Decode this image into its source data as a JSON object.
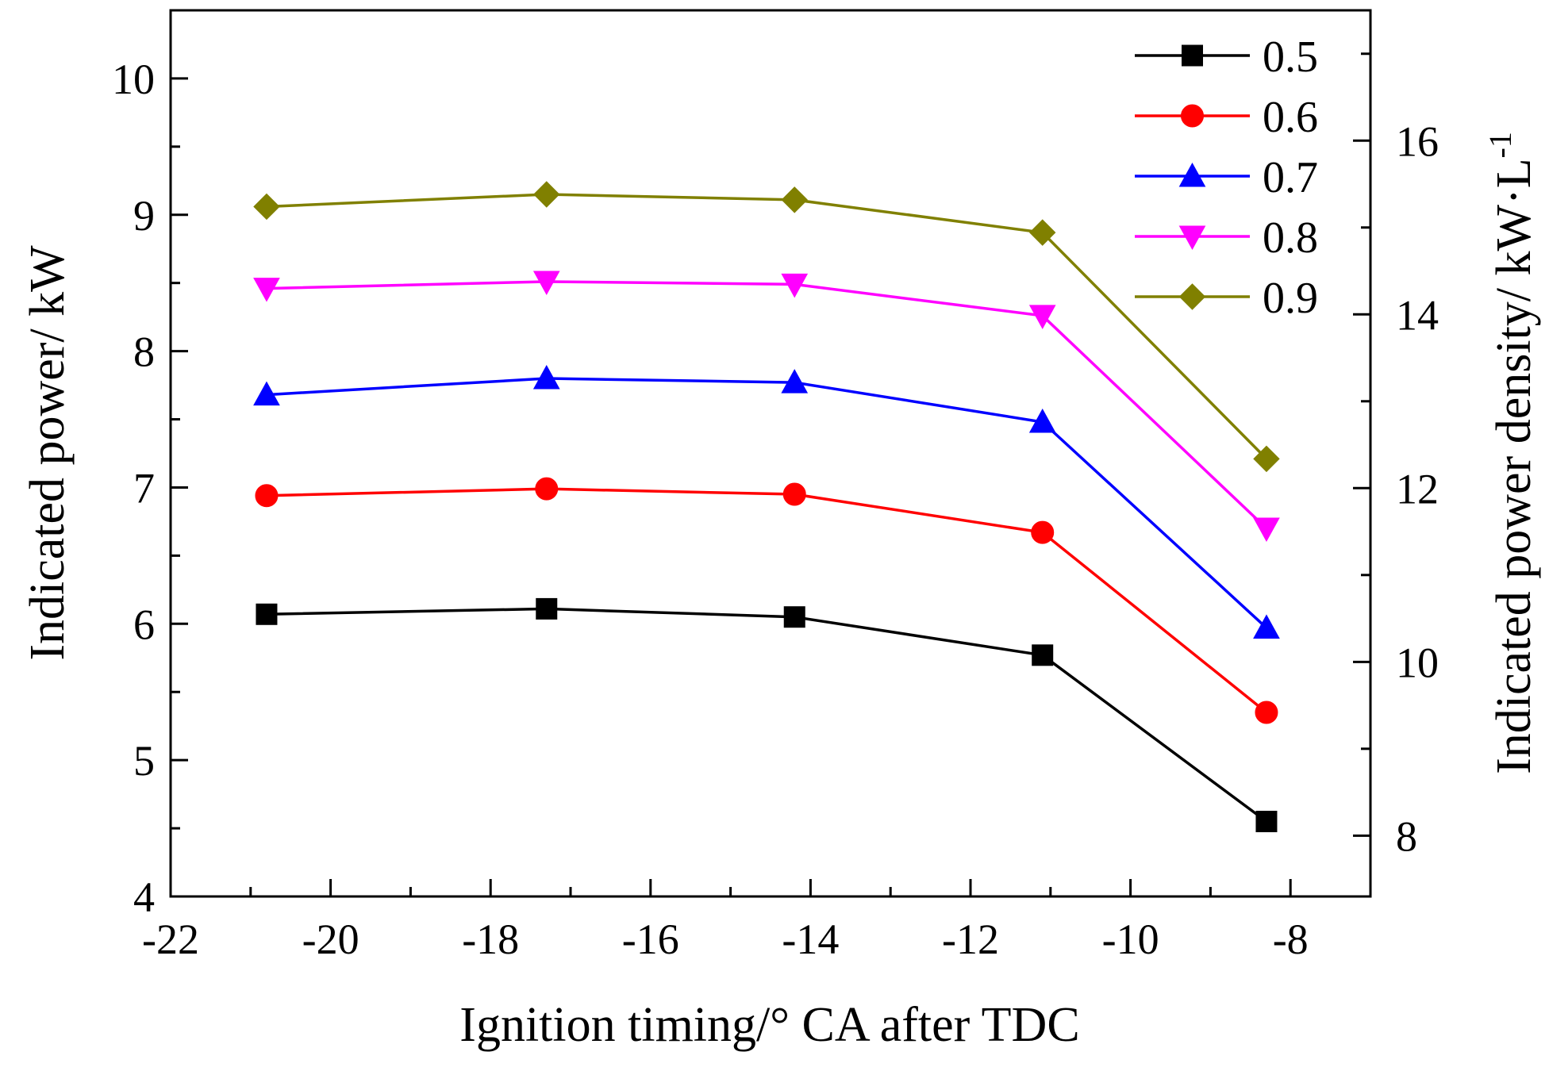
{
  "chart_data": {
    "type": "line",
    "title": "",
    "xlabel": "Ignition timing/° CA after TDC",
    "ylabel": "Indicated power/ kW",
    "y2label": "Indicated power density/ kW·L",
    "y2label_superscript": "-1",
    "xlim": [
      -22,
      -7
    ],
    "ylim": [
      4,
      10.5
    ],
    "y2lim": [
      7.3,
      17.5
    ],
    "xticks": [
      -22,
      -20,
      -18,
      -16,
      -14,
      -12,
      -10,
      -8
    ],
    "xtick_labels": [
      "-22",
      "-20",
      "-18",
      "-16",
      "-14",
      "-12",
      "-10",
      "-8"
    ],
    "yticks": [
      4,
      5,
      6,
      7,
      8,
      9,
      10
    ],
    "ytick_labels": [
      "4",
      "5",
      "6",
      "7",
      "8",
      "9",
      "10"
    ],
    "y2ticks": [
      8,
      10,
      12,
      14,
      16
    ],
    "y2tick_labels": [
      "8",
      "10",
      "12",
      "14",
      "16"
    ],
    "grid": false,
    "legend_position": "top-right",
    "x": [
      -20.8,
      -17.3,
      -14.2,
      -11.1,
      -8.3
    ],
    "series": [
      {
        "name": "0.5",
        "color": "#000000",
        "marker": "square",
        "values": [
          6.07,
          6.11,
          6.05,
          5.77,
          4.55
        ]
      },
      {
        "name": "0.6",
        "color": "#ff0000",
        "marker": "circle",
        "values": [
          6.94,
          6.99,
          6.95,
          6.67,
          5.35
        ]
      },
      {
        "name": "0.7",
        "color": "#0000ff",
        "marker": "triangle-up",
        "values": [
          7.68,
          7.8,
          7.77,
          7.48,
          5.97
        ]
      },
      {
        "name": "0.8",
        "color": "#ff00ff",
        "marker": "triangle-down",
        "values": [
          8.46,
          8.51,
          8.49,
          8.26,
          6.7
        ]
      },
      {
        "name": "0.9",
        "color": "#808000",
        "marker": "diamond",
        "values": [
          9.06,
          9.15,
          9.11,
          8.87,
          7.21
        ]
      }
    ]
  }
}
